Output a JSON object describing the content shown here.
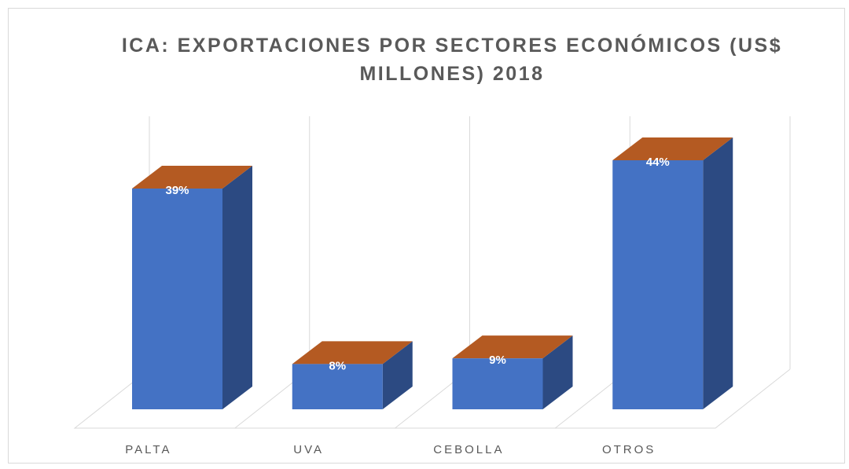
{
  "chart_data": {
    "type": "bar3d",
    "title": "ICA: EXPORTACIONES POR SECTORES ECONÓMICOS (US$ MILLONES) 2018",
    "categories": [
      "PALTA",
      "UVA",
      "CEBOLLA",
      "OTROS"
    ],
    "values": [
      39,
      8,
      9,
      44
    ],
    "value_labels": [
      "39%",
      "8%",
      "9%",
      "44%"
    ],
    "color": "#4472c4",
    "side_color": "#2c4a82",
    "top_color": "#b45a22",
    "grid": true
  }
}
